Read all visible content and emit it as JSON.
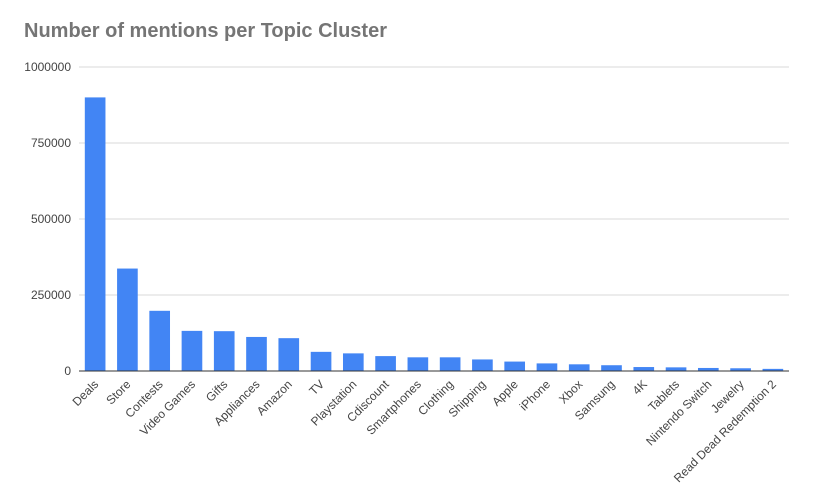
{
  "chart_data": {
    "type": "bar",
    "title": "Number of mentions per Topic Cluster",
    "xlabel": "",
    "ylabel": "",
    "categories": [
      "Deals",
      "Store",
      "Contests",
      "Video Games",
      "Gifts",
      "Appliances",
      "Amazon",
      "TV",
      "Playstation",
      "Cdiscount",
      "Smartphones",
      "Clothing",
      "Shipping",
      "Apple",
      "iPhone",
      "Xbox",
      "Samsung",
      "4K",
      "Tablets",
      "Nintendo Switch",
      "Jewelry",
      "Read Dead Redemption 2"
    ],
    "values": [
      900000,
      337000,
      198000,
      132000,
      131000,
      112000,
      108000,
      63000,
      58000,
      49000,
      45000,
      45000,
      38000,
      31000,
      25000,
      22000,
      19000,
      13000,
      12000,
      10000,
      9000,
      7000
    ],
    "yticks": [
      "0",
      "250000",
      "500000",
      "750000",
      "1000000"
    ],
    "ylim": [
      0,
      1000000
    ],
    "grid": true,
    "bar_color": "#4285f4"
  }
}
